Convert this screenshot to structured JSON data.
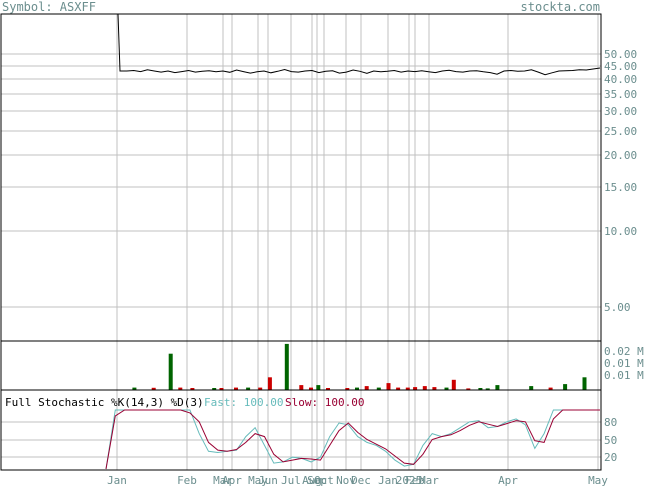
{
  "header": {
    "symbol_label": "Symbol: ASXFF",
    "site": "stockta.com"
  },
  "chart_data": [
    {
      "type": "line",
      "panel": "price",
      "yscale": "log",
      "ylim": [
        4,
        55
      ],
      "ytick_labels": [
        "50.00",
        "45.00",
        "40.00",
        "35.00",
        "30.00",
        "25.00",
        "20.00",
        "15.00",
        "10.00",
        "5.00"
      ],
      "series": [
        {
          "values": [
            130,
            43,
            43,
            43.2,
            42.8,
            43.5,
            43,
            42.6,
            43,
            42.4,
            42.8,
            43.2,
            42.6,
            42.9,
            43.1,
            42.7,
            43,
            42.5,
            43.4,
            42.8,
            42.2,
            42.7,
            43,
            42.3,
            42.9,
            43.6,
            42.8,
            42.6,
            43,
            43.2,
            42.4,
            42.9,
            43.1,
            42.2,
            42.6,
            43.4,
            42.9,
            42.1,
            43,
            42.7,
            42.9,
            43.2,
            42.6,
            43,
            42.8,
            43.1,
            42.7,
            42.4,
            43,
            43.3,
            42.8,
            42.6,
            43,
            43.1,
            42.7,
            42.4,
            41.8,
            43,
            43.2,
            42.9,
            43,
            43.5,
            42.6,
            41.6,
            42.3,
            43,
            43.1,
            43.2,
            43.5,
            43.4,
            43.8,
            44.2
          ]
        }
      ]
    },
    {
      "type": "bar",
      "panel": "volume",
      "ylim": [
        0,
        0.025
      ],
      "ytick_labels": [
        "0.02 M",
        "0.01 M",
        "0.01 M"
      ],
      "bars": [
        {
          "x": 0.04,
          "v": 0.0012,
          "dir": "up"
        },
        {
          "x": 0.08,
          "v": 0.0011,
          "dir": "down"
        },
        {
          "x": 0.115,
          "v": 0.0185,
          "dir": "up"
        },
        {
          "x": 0.135,
          "v": 0.0012,
          "dir": "down"
        },
        {
          "x": 0.16,
          "v": 0.001,
          "dir": "down"
        },
        {
          "x": 0.205,
          "v": 0.001,
          "dir": "up"
        },
        {
          "x": 0.22,
          "v": 0.001,
          "dir": "down"
        },
        {
          "x": 0.25,
          "v": 0.0012,
          "dir": "down"
        },
        {
          "x": 0.275,
          "v": 0.0012,
          "dir": "up"
        },
        {
          "x": 0.3,
          "v": 0.0012,
          "dir": "down"
        },
        {
          "x": 0.32,
          "v": 0.0065,
          "dir": "down"
        },
        {
          "x": 0.355,
          "v": 0.0235,
          "dir": "up"
        },
        {
          "x": 0.385,
          "v": 0.0025,
          "dir": "down"
        },
        {
          "x": 0.405,
          "v": 0.0012,
          "dir": "down"
        },
        {
          "x": 0.42,
          "v": 0.0025,
          "dir": "up"
        },
        {
          "x": 0.44,
          "v": 0.001,
          "dir": "down"
        },
        {
          "x": 0.48,
          "v": 0.001,
          "dir": "down"
        },
        {
          "x": 0.5,
          "v": 0.0012,
          "dir": "up"
        },
        {
          "x": 0.52,
          "v": 0.002,
          "dir": "down"
        },
        {
          "x": 0.545,
          "v": 0.0012,
          "dir": "up"
        },
        {
          "x": 0.565,
          "v": 0.0035,
          "dir": "down"
        },
        {
          "x": 0.585,
          "v": 0.0012,
          "dir": "down"
        },
        {
          "x": 0.605,
          "v": 0.0012,
          "dir": "down"
        },
        {
          "x": 0.62,
          "v": 0.0015,
          "dir": "down"
        },
        {
          "x": 0.64,
          "v": 0.002,
          "dir": "down"
        },
        {
          "x": 0.66,
          "v": 0.0015,
          "dir": "down"
        },
        {
          "x": 0.685,
          "v": 0.0012,
          "dir": "up"
        },
        {
          "x": 0.7,
          "v": 0.0052,
          "dir": "down"
        },
        {
          "x": 0.73,
          "v": 0.0008,
          "dir": "down"
        },
        {
          "x": 0.755,
          "v": 0.001,
          "dir": "up"
        },
        {
          "x": 0.77,
          "v": 0.0008,
          "dir": "up"
        },
        {
          "x": 0.79,
          "v": 0.0025,
          "dir": "up"
        },
        {
          "x": 0.86,
          "v": 0.002,
          "dir": "up"
        },
        {
          "x": 0.9,
          "v": 0.0012,
          "dir": "down"
        },
        {
          "x": 0.93,
          "v": 0.003,
          "dir": "up"
        },
        {
          "x": 0.97,
          "v": 0.0065,
          "dir": "up"
        }
      ]
    },
    {
      "type": "line",
      "panel": "stochastic",
      "title": "Full Stochastic %K(14,3) %D(3)",
      "fast_label": "Fast: 100.00",
      "slow_label": "Slow: 100.00",
      "ylim": [
        0,
        100
      ],
      "ytick_labels": [
        "80",
        "50",
        "20"
      ],
      "series": [
        {
          "name": "Fast",
          "values": [
            0,
            100,
            100,
            100,
            100,
            100,
            100,
            100,
            100,
            100,
            60,
            30,
            28,
            30,
            32,
            55,
            70,
            40,
            10,
            12,
            20,
            18,
            12,
            20,
            55,
            78,
            75,
            55,
            45,
            40,
            30,
            15,
            5,
            8,
            40,
            60,
            55,
            60,
            70,
            80,
            82,
            70,
            72,
            80,
            85,
            75,
            35,
            60,
            100,
            100,
            100,
            100,
            100,
            100
          ]
        },
        {
          "name": "Slow",
          "values": [
            0,
            90,
            100,
            100,
            100,
            100,
            100,
            100,
            100,
            95,
            80,
            45,
            32,
            30,
            33,
            45,
            60,
            55,
            25,
            12,
            15,
            18,
            17,
            15,
            40,
            65,
            78,
            62,
            50,
            42,
            34,
            22,
            10,
            8,
            25,
            50,
            55,
            58,
            65,
            74,
            80,
            76,
            72,
            77,
            82,
            80,
            48,
            45,
            85,
            100,
            100,
            100,
            100,
            100
          ]
        }
      ]
    }
  ],
  "x_labels": [
    "Jan",
    "Feb",
    "Mar",
    "Apr",
    "May",
    "Jun",
    "Jul",
    "Aug",
    "Sep",
    "Oct",
    "Nov",
    "Dec",
    "Jan",
    "2025",
    "Feb",
    "Mar",
    "Apr",
    "May"
  ],
  "colors": {
    "price_line": "#000000",
    "up_bar": "#006400",
    "down_bar": "#cc0000",
    "fast_line": "#66bbbb",
    "slow_line": "#990033",
    "grid": "#c0c0c0",
    "axis_text": "#6b8e8e"
  }
}
